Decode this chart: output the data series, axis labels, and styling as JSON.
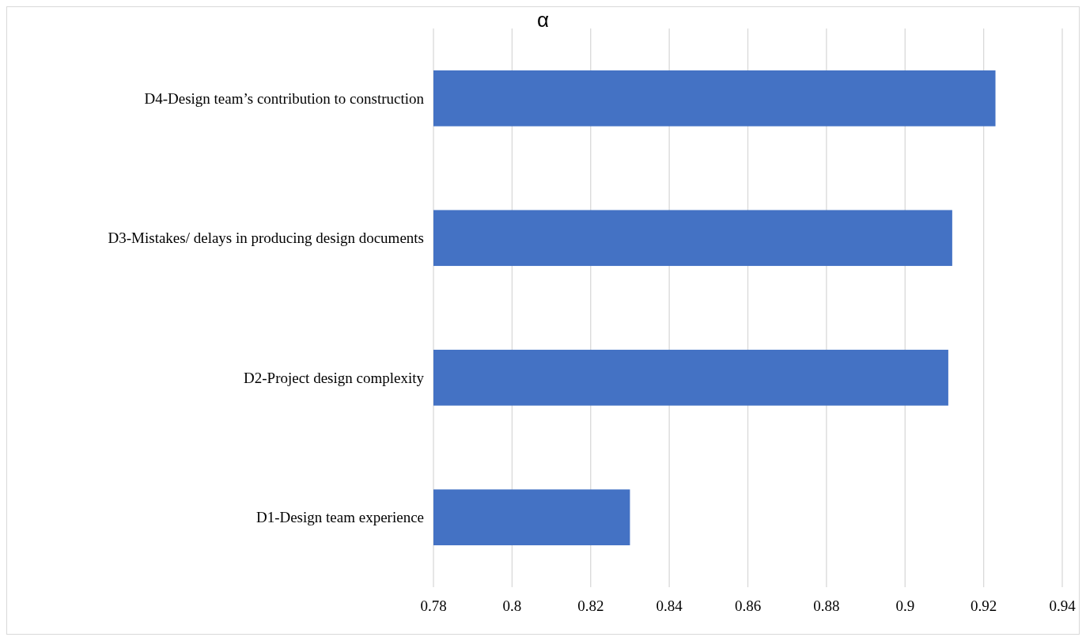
{
  "chart_data": {
    "type": "bar",
    "orientation": "horizontal",
    "title": "α",
    "categories": [
      "D4-Design team’s contribution to construction",
      "D3-Mistakes/ delays in producing design documents",
      "D2-Project design complexity",
      "D1-Design team experience"
    ],
    "values": [
      0.923,
      0.912,
      0.911,
      0.83
    ],
    "color": "#4472c4",
    "xlim": [
      0.78,
      0.94
    ],
    "xticks": [
      0.78,
      0.8,
      0.82,
      0.84,
      0.86,
      0.88,
      0.9,
      0.92,
      0.94
    ],
    "grid": "x"
  }
}
